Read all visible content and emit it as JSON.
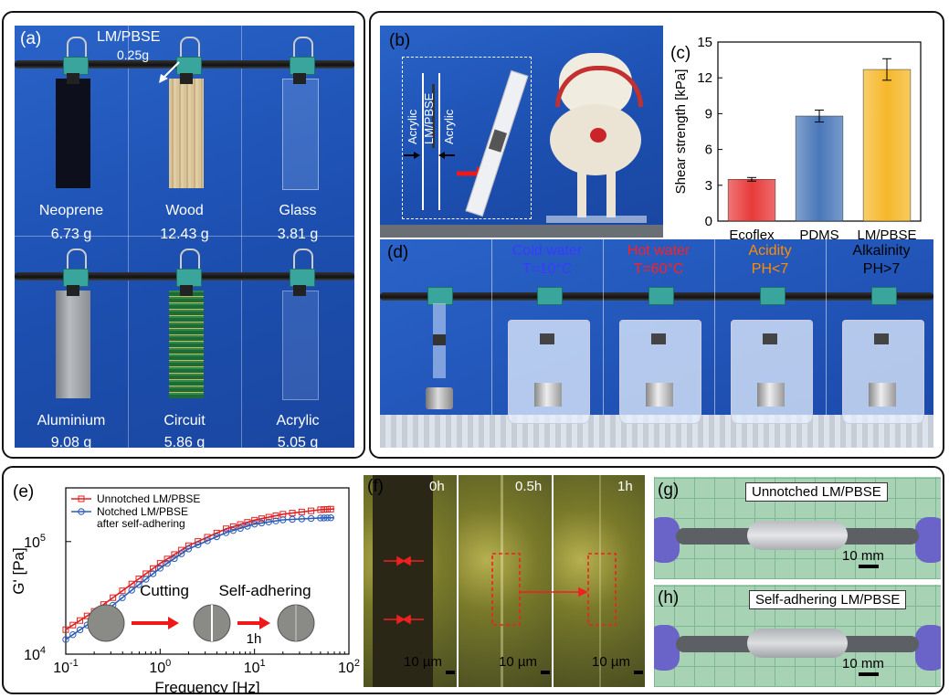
{
  "panel_a": {
    "label": "(a)",
    "annotation_name": "LM/PBSE",
    "annotation_mass": "0.25g",
    "cells": [
      {
        "name": "Neoprene",
        "mass": "6.73 g"
      },
      {
        "name": "Wood",
        "mass": "12.43 g"
      },
      {
        "name": "Glass",
        "mass": "3.81 g"
      },
      {
        "name": "Aluminium",
        "mass": "9.08 g"
      },
      {
        "name": "Circuit",
        "mass": "5.86 g"
      },
      {
        "name": "Acrylic",
        "mass": "5.05 g"
      }
    ]
  },
  "panel_b": {
    "label": "(b)",
    "layer_left": "Acrylic",
    "layer_mid": "LM/PBSE",
    "layer_right": "Acrylic"
  },
  "panel_c": {
    "label": "(c)"
  },
  "panel_d": {
    "label": "(d)",
    "conditions": [
      {
        "title": "Cold water",
        "detail": "T=10°C",
        "color": "#3b3bff"
      },
      {
        "title": "Hot water",
        "detail": "T=60°C",
        "color": "#ff2020"
      },
      {
        "title": "Acidity",
        "detail": "PH<7",
        "color": "#ff8c00"
      },
      {
        "title": "Alkalinity",
        "detail": "PH>7",
        "color": "#000000"
      }
    ]
  },
  "panel_e": {
    "label": "(e)",
    "cutting": "Cutting",
    "self_adhering": "Self-adhering",
    "time": "1h"
  },
  "panel_f": {
    "label": "(f)",
    "times": [
      "0h",
      "0.5h",
      "1h"
    ],
    "scale": "10 µm"
  },
  "panel_g": {
    "label": "(g)",
    "caption": "Unnotched LM/PBSE",
    "scale": "10 mm"
  },
  "panel_h": {
    "label": "(h)",
    "caption": "Self-adhering LM/PBSE",
    "scale": "10 mm"
  },
  "chart_data": [
    {
      "type": "bar",
      "panel": "c",
      "categories": [
        "Ecoflex",
        "PDMS",
        "LM/PBSE"
      ],
      "values": [
        3.5,
        8.8,
        12.7
      ],
      "errors": [
        0.15,
        0.5,
        0.9
      ],
      "colors": [
        "#e83a3a",
        "#4a78b8",
        "#f5b82a"
      ],
      "ylabel": "Shear strength [kPa]",
      "ylim": [
        0,
        15
      ],
      "yticks": [
        "0",
        "3",
        "6",
        "9",
        "12",
        "15"
      ]
    },
    {
      "type": "line",
      "panel": "e",
      "xscale": "log",
      "yscale": "log",
      "xlabel": "Frequency [Hz]",
      "ylabel": "G' [Pa]",
      "xlim": [
        0.1,
        100
      ],
      "ylim": [
        10000,
        300000
      ],
      "xticks": [
        {
          "v": 0.1,
          "base": "10",
          "exp": "-1"
        },
        {
          "v": 1,
          "base": "10",
          "exp": "0"
        },
        {
          "v": 10,
          "base": "10",
          "exp": "1"
        },
        {
          "v": 100,
          "base": "10",
          "exp": "2"
        }
      ],
      "yticks": [
        {
          "v": 10000,
          "base": "10",
          "exp": "4"
        },
        {
          "v": 100000,
          "base": "10",
          "exp": "5"
        }
      ],
      "series": [
        {
          "name": "Unnotched LM/PBSE",
          "color": "#e02020",
          "marker": "square",
          "x": [
            0.1,
            0.2,
            0.5,
            1,
            2,
            5,
            10,
            20,
            50,
            70
          ],
          "y": [
            16500,
            24000,
            42000,
            64000,
            92000,
            130000,
            155000,
            175000,
            192000,
            195000
          ]
        },
        {
          "name": "Notched LM/PBSE after self-adhering",
          "color": "#2a5cb8",
          "marker": "circle",
          "x": [
            0.1,
            0.2,
            0.5,
            1,
            2,
            5,
            10,
            20,
            50,
            70
          ],
          "y": [
            13500,
            20000,
            37000,
            58000,
            86000,
            120000,
            143000,
            156000,
            162000,
            163000
          ]
        }
      ]
    }
  ]
}
